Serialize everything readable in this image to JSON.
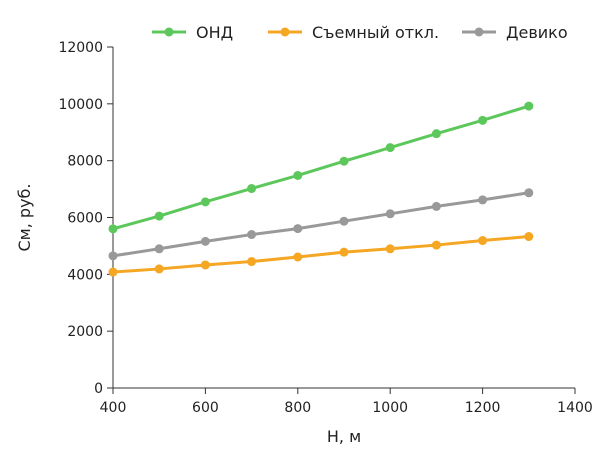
{
  "chart_data": {
    "type": "line",
    "xlabel": "H, м",
    "ylabel": "Cм, руб.",
    "xlim": [
      400,
      1400
    ],
    "ylim": [
      0,
      12000
    ],
    "xticks": [
      400,
      600,
      800,
      1000,
      1200,
      1400
    ],
    "yticks": [
      0,
      2000,
      4000,
      6000,
      8000,
      10000,
      12000
    ],
    "x": [
      400,
      500,
      600,
      700,
      800,
      900,
      1000,
      1100,
      1200,
      1300
    ],
    "legend_position": "top",
    "grid": false,
    "series": [
      {
        "name": "ОНД",
        "color": "#5cc85c",
        "values": [
          5600,
          6050,
          6550,
          7020,
          7480,
          7980,
          8460,
          8950,
          9420,
          9920
        ]
      },
      {
        "name": "Съемный откл.",
        "color": "#f5a623",
        "values": [
          4080,
          4190,
          4330,
          4450,
          4610,
          4780,
          4900,
          5030,
          5190,
          5330
        ]
      },
      {
        "name": "Девико",
        "color": "#999999",
        "values": [
          4650,
          4900,
          5160,
          5400,
          5610,
          5870,
          6130,
          6390,
          6620,
          6870
        ]
      }
    ]
  }
}
